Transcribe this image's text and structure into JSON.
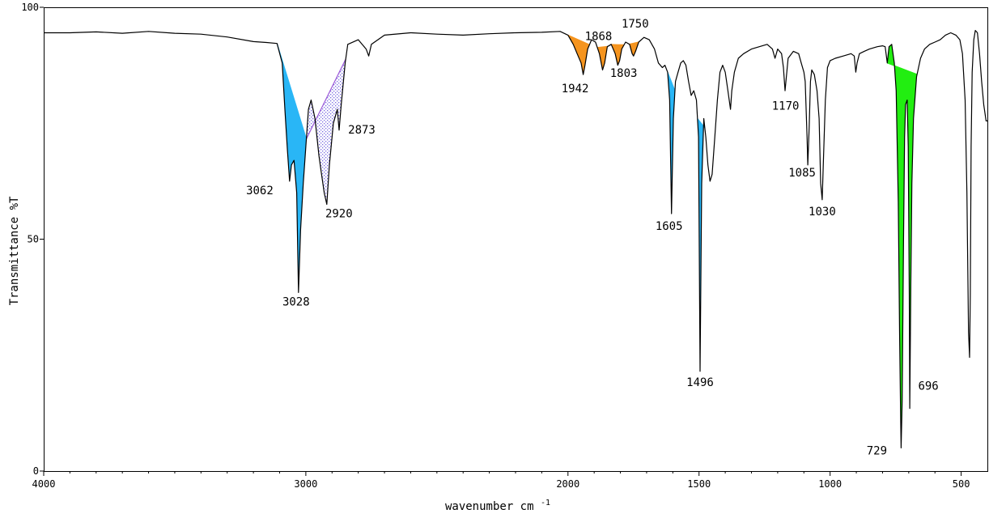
{
  "chart_data": {
    "type": "line",
    "title": "",
    "xlabel": "wavenumber cm",
    "xlabel_sup": "-1",
    "ylabel": "Transmittance %T",
    "xlim": [
      4000,
      400
    ],
    "ylim": [
      0,
      100
    ],
    "x_reversed": true,
    "grid": false,
    "xticks": [
      {
        "value": 4000,
        "label": "4000"
      },
      {
        "value": 3000,
        "label": "3000"
      },
      {
        "value": 2000,
        "label": "2000"
      },
      {
        "value": 1500,
        "label": "1500"
      },
      {
        "value": 1000,
        "label": "1000"
      },
      {
        "value": 500,
        "label": "500"
      }
    ],
    "yticks": [
      {
        "value": 100,
        "label": "100"
      },
      {
        "value": 50,
        "label": "50"
      },
      {
        "value": 0,
        "label": "0"
      }
    ],
    "series": [
      {
        "points": [
          [
            4000,
            94.5
          ],
          [
            3900,
            94.5
          ],
          [
            3800,
            94.7
          ],
          [
            3700,
            94.4
          ],
          [
            3600,
            94.8
          ],
          [
            3500,
            94.4
          ],
          [
            3400,
            94.2
          ],
          [
            3300,
            93.6
          ],
          [
            3200,
            92.6
          ],
          [
            3150,
            92.4
          ],
          [
            3110,
            92.2
          ],
          [
            3090,
            88
          ],
          [
            3080,
            78
          ],
          [
            3070,
            69
          ],
          [
            3062,
            62.5
          ],
          [
            3055,
            66
          ],
          [
            3045,
            67
          ],
          [
            3035,
            60
          ],
          [
            3028,
            38.5
          ],
          [
            3020,
            52
          ],
          [
            3010,
            62
          ],
          [
            3000,
            70
          ],
          [
            2990,
            78
          ],
          [
            2980,
            80
          ],
          [
            2965,
            76
          ],
          [
            2950,
            68
          ],
          [
            2940,
            64
          ],
          [
            2930,
            60
          ],
          [
            2920,
            57.5
          ],
          [
            2910,
            66
          ],
          [
            2895,
            75
          ],
          [
            2880,
            78
          ],
          [
            2873,
            73.5
          ],
          [
            2865,
            79
          ],
          [
            2850,
            88
          ],
          [
            2840,
            92
          ],
          [
            2800,
            93
          ],
          [
            2770,
            91
          ],
          [
            2760,
            89.5
          ],
          [
            2750,
            92
          ],
          [
            2700,
            94
          ],
          [
            2600,
            94.5
          ],
          [
            2500,
            94.2
          ],
          [
            2400,
            94
          ],
          [
            2300,
            94.3
          ],
          [
            2200,
            94.5
          ],
          [
            2100,
            94.6
          ],
          [
            2030,
            94.8
          ],
          [
            2000,
            94
          ],
          [
            1980,
            92
          ],
          [
            1965,
            90
          ],
          [
            1950,
            88
          ],
          [
            1942,
            85.5
          ],
          [
            1935,
            87.5
          ],
          [
            1925,
            91
          ],
          [
            1910,
            93
          ],
          [
            1895,
            92.5
          ],
          [
            1880,
            90
          ],
          [
            1868,
            86.5
          ],
          [
            1860,
            88
          ],
          [
            1850,
            91.5
          ],
          [
            1835,
            92
          ],
          [
            1820,
            90
          ],
          [
            1810,
            87.5
          ],
          [
            1803,
            88.5
          ],
          [
            1795,
            91
          ],
          [
            1780,
            92.5
          ],
          [
            1765,
            92
          ],
          [
            1755,
            90
          ],
          [
            1750,
            89.5
          ],
          [
            1742,
            90.5
          ],
          [
            1730,
            92.5
          ],
          [
            1710,
            93.5
          ],
          [
            1690,
            93
          ],
          [
            1670,
            91
          ],
          [
            1655,
            88
          ],
          [
            1640,
            87
          ],
          [
            1630,
            87.5
          ],
          [
            1620,
            86
          ],
          [
            1612,
            80
          ],
          [
            1605,
            55.5
          ],
          [
            1598,
            76
          ],
          [
            1590,
            84
          ],
          [
            1580,
            86
          ],
          [
            1570,
            88
          ],
          [
            1560,
            88.5
          ],
          [
            1550,
            87.5
          ],
          [
            1540,
            84
          ],
          [
            1530,
            81
          ],
          [
            1520,
            82
          ],
          [
            1510,
            80
          ],
          [
            1502,
            72
          ],
          [
            1496,
            21.5
          ],
          [
            1490,
            62
          ],
          [
            1482,
            76
          ],
          [
            1474,
            72
          ],
          [
            1466,
            66
          ],
          [
            1458,
            62.5
          ],
          [
            1450,
            64
          ],
          [
            1440,
            72
          ],
          [
            1430,
            80
          ],
          [
            1420,
            86
          ],
          [
            1410,
            87.5
          ],
          [
            1400,
            86
          ],
          [
            1390,
            82
          ],
          [
            1385,
            80
          ],
          [
            1380,
            78
          ],
          [
            1375,
            82
          ],
          [
            1365,
            86
          ],
          [
            1350,
            89
          ],
          [
            1330,
            90
          ],
          [
            1300,
            91
          ],
          [
            1270,
            91.5
          ],
          [
            1240,
            92
          ],
          [
            1220,
            91
          ],
          [
            1210,
            89
          ],
          [
            1200,
            91
          ],
          [
            1185,
            90
          ],
          [
            1178,
            87
          ],
          [
            1172,
            82
          ],
          [
            1160,
            89
          ],
          [
            1140,
            90.5
          ],
          [
            1120,
            90
          ],
          [
            1110,
            88
          ],
          [
            1100,
            86
          ],
          [
            1095,
            84
          ],
          [
            1088,
            72
          ],
          [
            1085,
            66
          ],
          [
            1080,
            74
          ],
          [
            1075,
            84
          ],
          [
            1070,
            86.5
          ],
          [
            1060,
            85.5
          ],
          [
            1050,
            82
          ],
          [
            1042,
            76
          ],
          [
            1036,
            62
          ],
          [
            1030,
            58.5
          ],
          [
            1025,
            68
          ],
          [
            1018,
            80
          ],
          [
            1010,
            87
          ],
          [
            1000,
            88.5
          ],
          [
            980,
            89
          ],
          [
            950,
            89.5
          ],
          [
            920,
            90
          ],
          [
            908,
            89.5
          ],
          [
            902,
            86
          ],
          [
            897,
            88
          ],
          [
            888,
            90
          ],
          [
            870,
            90.5
          ],
          [
            850,
            91
          ],
          [
            820,
            91.5
          ],
          [
            800,
            91.7
          ],
          [
            790,
            91.5
          ],
          [
            782,
            88
          ],
          [
            775,
            91.5
          ],
          [
            765,
            92
          ],
          [
            755,
            88
          ],
          [
            748,
            82
          ],
          [
            740,
            58
          ],
          [
            735,
            30
          ],
          [
            731,
            12
          ],
          [
            729,
            5
          ],
          [
            725,
            15
          ],
          [
            720,
            50
          ],
          [
            716,
            72
          ],
          [
            712,
            79
          ],
          [
            706,
            80
          ],
          [
            702,
            70
          ],
          [
            698,
            38
          ],
          [
            696,
            13.5
          ],
          [
            692,
            40
          ],
          [
            688,
            62
          ],
          [
            682,
            76
          ],
          [
            670,
            85
          ],
          [
            655,
            89
          ],
          [
            640,
            91
          ],
          [
            620,
            92
          ],
          [
            600,
            92.5
          ],
          [
            580,
            93
          ],
          [
            560,
            94
          ],
          [
            540,
            94.5
          ],
          [
            520,
            94
          ],
          [
            505,
            93
          ],
          [
            495,
            90
          ],
          [
            485,
            80
          ],
          [
            478,
            60
          ],
          [
            472,
            30
          ],
          [
            468,
            24.5
          ],
          [
            465,
            38
          ],
          [
            462,
            70
          ],
          [
            458,
            86
          ],
          [
            452,
            93
          ],
          [
            446,
            95
          ],
          [
            438,
            94.5
          ],
          [
            430,
            90
          ],
          [
            422,
            84
          ],
          [
            414,
            79
          ],
          [
            405,
            75.5
          ],
          [
            400,
            75.5
          ]
        ]
      }
    ],
    "shaded_regions": [
      {
        "color": "#29b6f6",
        "pattern": "solid",
        "x": [
          3110,
          2998
        ]
      },
      {
        "color": "#c9c0f5",
        "pattern": "dots",
        "x": [
          2998,
          2848
        ]
      },
      {
        "color": "#f5941e",
        "pattern": "solid",
        "x": [
          2000,
          1918
        ]
      },
      {
        "color": "#f5941e",
        "pattern": "solid",
        "x": [
          1888,
          1848
        ]
      },
      {
        "color": "#f5941e",
        "pattern": "solid",
        "x": [
          1836,
          1786
        ]
      },
      {
        "color": "#f5941e",
        "pattern": "solid",
        "x": [
          1766,
          1730
        ]
      },
      {
        "color": "#29b6f6",
        "pattern": "solid",
        "x": [
          1620,
          1592
        ]
      },
      {
        "color": "#29b6f6",
        "pattern": "solid",
        "x": [
          1506,
          1478
        ]
      },
      {
        "color": "#22ee11",
        "pattern": "solid",
        "x": [
          782,
          668
        ]
      }
    ],
    "peak_labels": [
      {
        "text": "3062",
        "x": 3062
      },
      {
        "text": "3028",
        "x": 3028
      },
      {
        "text": "2920",
        "x": 2920
      },
      {
        "text": "2873",
        "x": 2873
      },
      {
        "text": "1942",
        "x": 1942
      },
      {
        "text": "1868",
        "x": 1868
      },
      {
        "text": "1803",
        "x": 1803
      },
      {
        "text": "1750",
        "x": 1750
      },
      {
        "text": "1605",
        "x": 1605
      },
      {
        "text": "1496",
        "x": 1496
      },
      {
        "text": "1170",
        "x": 1170
      },
      {
        "text": "1085",
        "x": 1085
      },
      {
        "text": "1030",
        "x": 1030
      },
      {
        "text": "729",
        "x": 729
      },
      {
        "text": "696",
        "x": 696
      }
    ],
    "colors": {
      "line": "#000000",
      "blue_fill": "#29b6f6",
      "orange_fill": "#f5941e",
      "green_fill": "#22ee11",
      "dot_fill": "#7a6be0",
      "dot_outline": "#9b59d8"
    }
  }
}
